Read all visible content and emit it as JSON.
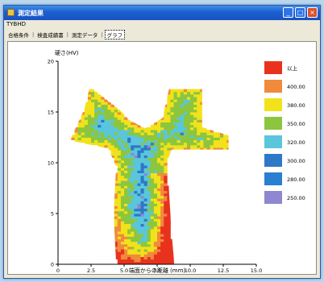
{
  "window": {
    "title": "測定結果",
    "menu": "TYBHD",
    "tabs": [
      {
        "label": "合格条件",
        "active": false
      },
      {
        "label": "検査成績書",
        "active": false
      },
      {
        "label": "測定データ",
        "active": false
      },
      {
        "label": "グラフ",
        "active": true
      }
    ],
    "tab_separator": "|"
  },
  "colors": {
    "accent": "#1c5fd0",
    "window_bg": "#ece9d8"
  },
  "chart_data": {
    "type": "heatmap",
    "title": "",
    "ylabel": "硬さ(HV)",
    "xlabel": "端面からの距離 (mm)",
    "xlim": [
      0,
      15
    ],
    "ylim": [
      0,
      20
    ],
    "xticks": [
      0,
      2.5,
      5.0,
      7.5,
      10.0,
      12.5,
      15.0
    ],
    "xtick_labels": [
      "0",
      "2.5",
      "5.0",
      "7.5",
      "10.0",
      "12.5",
      "15.0"
    ],
    "yticks": [
      0,
      5,
      10,
      15,
      20
    ],
    "ytick_labels": [
      "0",
      "5",
      "10",
      "15",
      "20"
    ],
    "legend": [
      {
        "label": "以上",
        "color": "#e8321e"
      },
      {
        "label": "400.00",
        "color": "#f08a3c"
      },
      {
        "label": "380.00",
        "color": "#f2e21a"
      },
      {
        "label": "350.00",
        "color": "#8cc63e"
      },
      {
        "label": "320.00",
        "color": "#5ac6dc"
      },
      {
        "label": "300.00",
        "color": "#2e78c8"
      },
      {
        "label": "280.00",
        "color": "#2a7fd0"
      },
      {
        "label": "250.00",
        "color": "#8f87cf"
      }
    ],
    "legend_position": "right",
    "grid": false
  }
}
